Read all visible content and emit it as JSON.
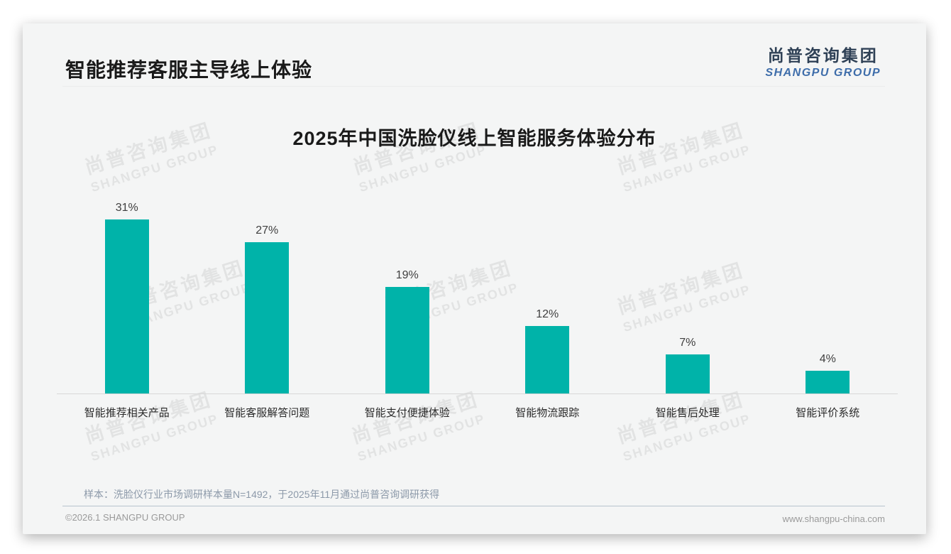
{
  "header": {
    "title": "智能推荐客服主导线上体验"
  },
  "logo": {
    "cn": "尚普咨询集团",
    "en": "SHANGPU GROUP"
  },
  "watermark": {
    "cn": "尚普咨询集团",
    "en": "SHANGPU GROUP"
  },
  "chart_data": {
    "type": "bar",
    "title": "2025年中国洗脸仪线上智能服务体验分布",
    "categories": [
      "智能推荐相关产品",
      "智能客服解答问题",
      "智能支付便捷体验",
      "智能物流跟踪",
      "智能售后处理",
      "智能评价系统"
    ],
    "values": [
      31,
      27,
      19,
      12,
      7,
      4
    ],
    "unit": "%",
    "value_labels": [
      "31%",
      "27%",
      "19%",
      "12%",
      "7%",
      "4%"
    ],
    "bar_color": "#00b3a9",
    "ylim": [
      0,
      35
    ],
    "grid": false,
    "legend": false,
    "xlabel": "",
    "ylabel": ""
  },
  "note": "样本：洗脸仪行业市场调研样本量N=1492，于2025年11月通过尚普咨询调研获得",
  "footer": {
    "left": "©2026.1 SHANGPU GROUP",
    "right": "www.shangpu-china.com"
  },
  "colors": {
    "bar": "#00b3a9",
    "card_bg": "#f4f5f5",
    "logo_cn": "#2f4156",
    "logo_en": "#3e6daa"
  }
}
